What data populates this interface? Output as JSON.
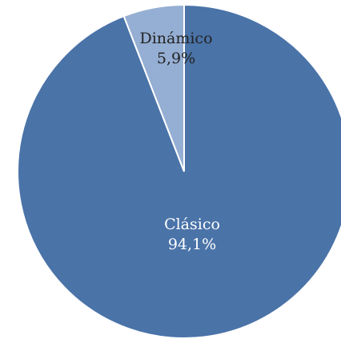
{
  "chart_data": {
    "type": "pie",
    "title": "",
    "categories": [
      "Clásico",
      "Dinámico"
    ],
    "values": [
      94.1,
      5.9
    ],
    "value_labels": [
      "94,1%",
      "5,9%"
    ],
    "colors": [
      "#4a73a8",
      "#95aed3"
    ],
    "label_colors": [
      "#ffffff",
      "#222222"
    ],
    "start": "12 o'clock",
    "direction": "clockwise",
    "legend": "none"
  }
}
